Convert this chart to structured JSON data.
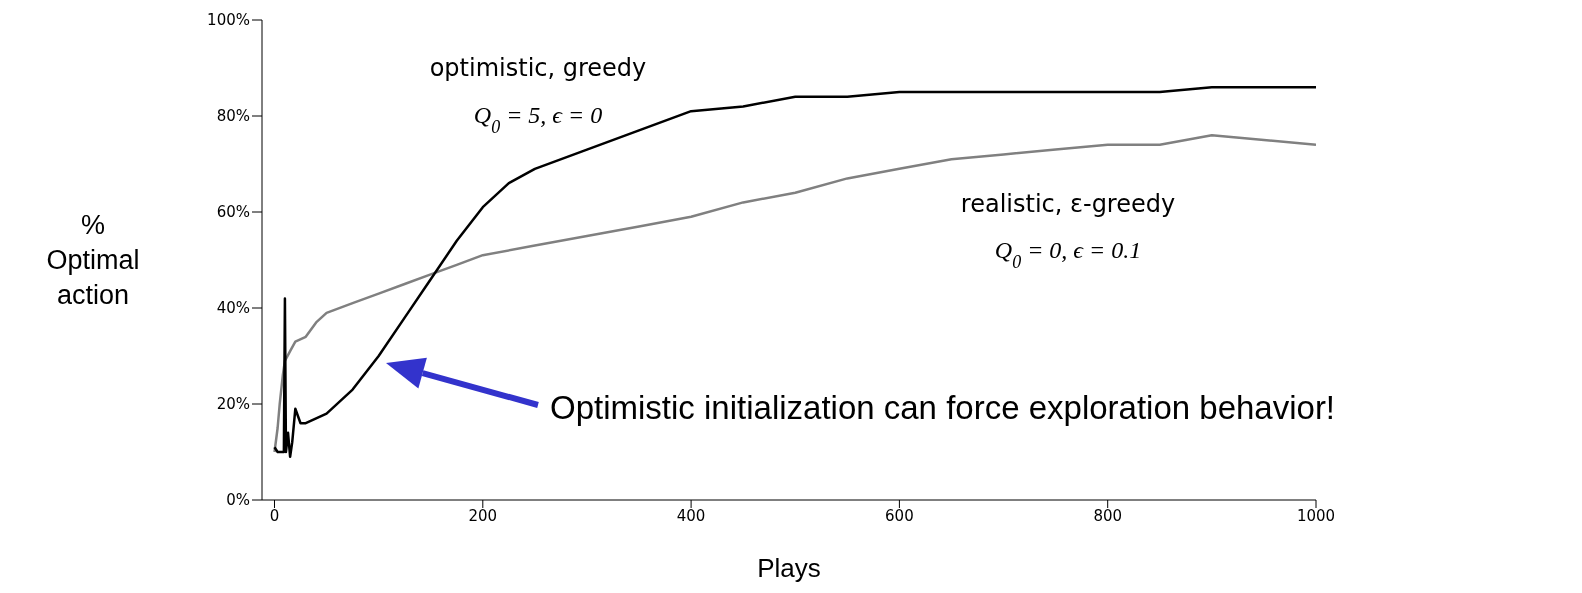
{
  "chart_data": {
    "type": "line",
    "xlabel": "Plays",
    "ylabel": "% Optimal action",
    "xlim": [
      -12,
      1000
    ],
    "xticks": [
      0,
      200,
      400,
      600,
      800,
      1000
    ],
    "ylim": [
      0,
      100
    ],
    "yticks": [
      {
        "value": 0,
        "label": "0%"
      },
      {
        "value": 20,
        "label": "20%"
      },
      {
        "value": 40,
        "label": "40%"
      },
      {
        "value": 60,
        "label": "60%"
      },
      {
        "value": 80,
        "label": "80%"
      },
      {
        "value": 100,
        "label": "100%"
      }
    ],
    "grid": false,
    "legend": false,
    "marker": "none",
    "line_style": "solid",
    "series": [
      {
        "color": "#808080",
        "x": [
          0,
          3,
          5,
          8,
          10,
          15,
          20,
          30,
          40,
          50,
          75,
          100,
          125,
          150,
          175,
          200,
          250,
          300,
          350,
          400,
          450,
          500,
          550,
          600,
          650,
          700,
          750,
          800,
          850,
          900,
          950,
          1000
        ],
        "values": [
          10,
          15,
          20,
          26,
          29,
          31,
          33,
          34,
          37,
          39,
          41,
          43,
          45,
          47,
          49,
          51,
          53,
          55,
          57,
          59,
          62,
          64,
          67,
          69,
          71,
          72,
          73,
          74,
          74,
          76,
          75,
          74
        ]
      },
      {
        "color": "#000000",
        "x": [
          0,
          3,
          6,
          9,
          10,
          11,
          13,
          15,
          17,
          20,
          25,
          30,
          40,
          50,
          75,
          100,
          125,
          150,
          175,
          200,
          225,
          250,
          300,
          350,
          400,
          450,
          500,
          550,
          600,
          650,
          700,
          750,
          800,
          850,
          900,
          950,
          1000
        ],
        "values": [
          11,
          10,
          10,
          10,
          42,
          10,
          14,
          9,
          12,
          19,
          16,
          16,
          17,
          18,
          23,
          30,
          38,
          46,
          54,
          61,
          66,
          69,
          73,
          77,
          81,
          82,
          84,
          84,
          85,
          85,
          85,
          85,
          85,
          85,
          86,
          86,
          86
        ]
      }
    ],
    "annotations": [
      "optimistic, greedy",
      "Q$_{0}$ = 5, ϵ = 0",
      "realistic, ε-greedy",
      "Q$_{0}$ = 0, ϵ = 0.1",
      "Optimistic initialization can force exploration behavior!"
    ]
  }
}
